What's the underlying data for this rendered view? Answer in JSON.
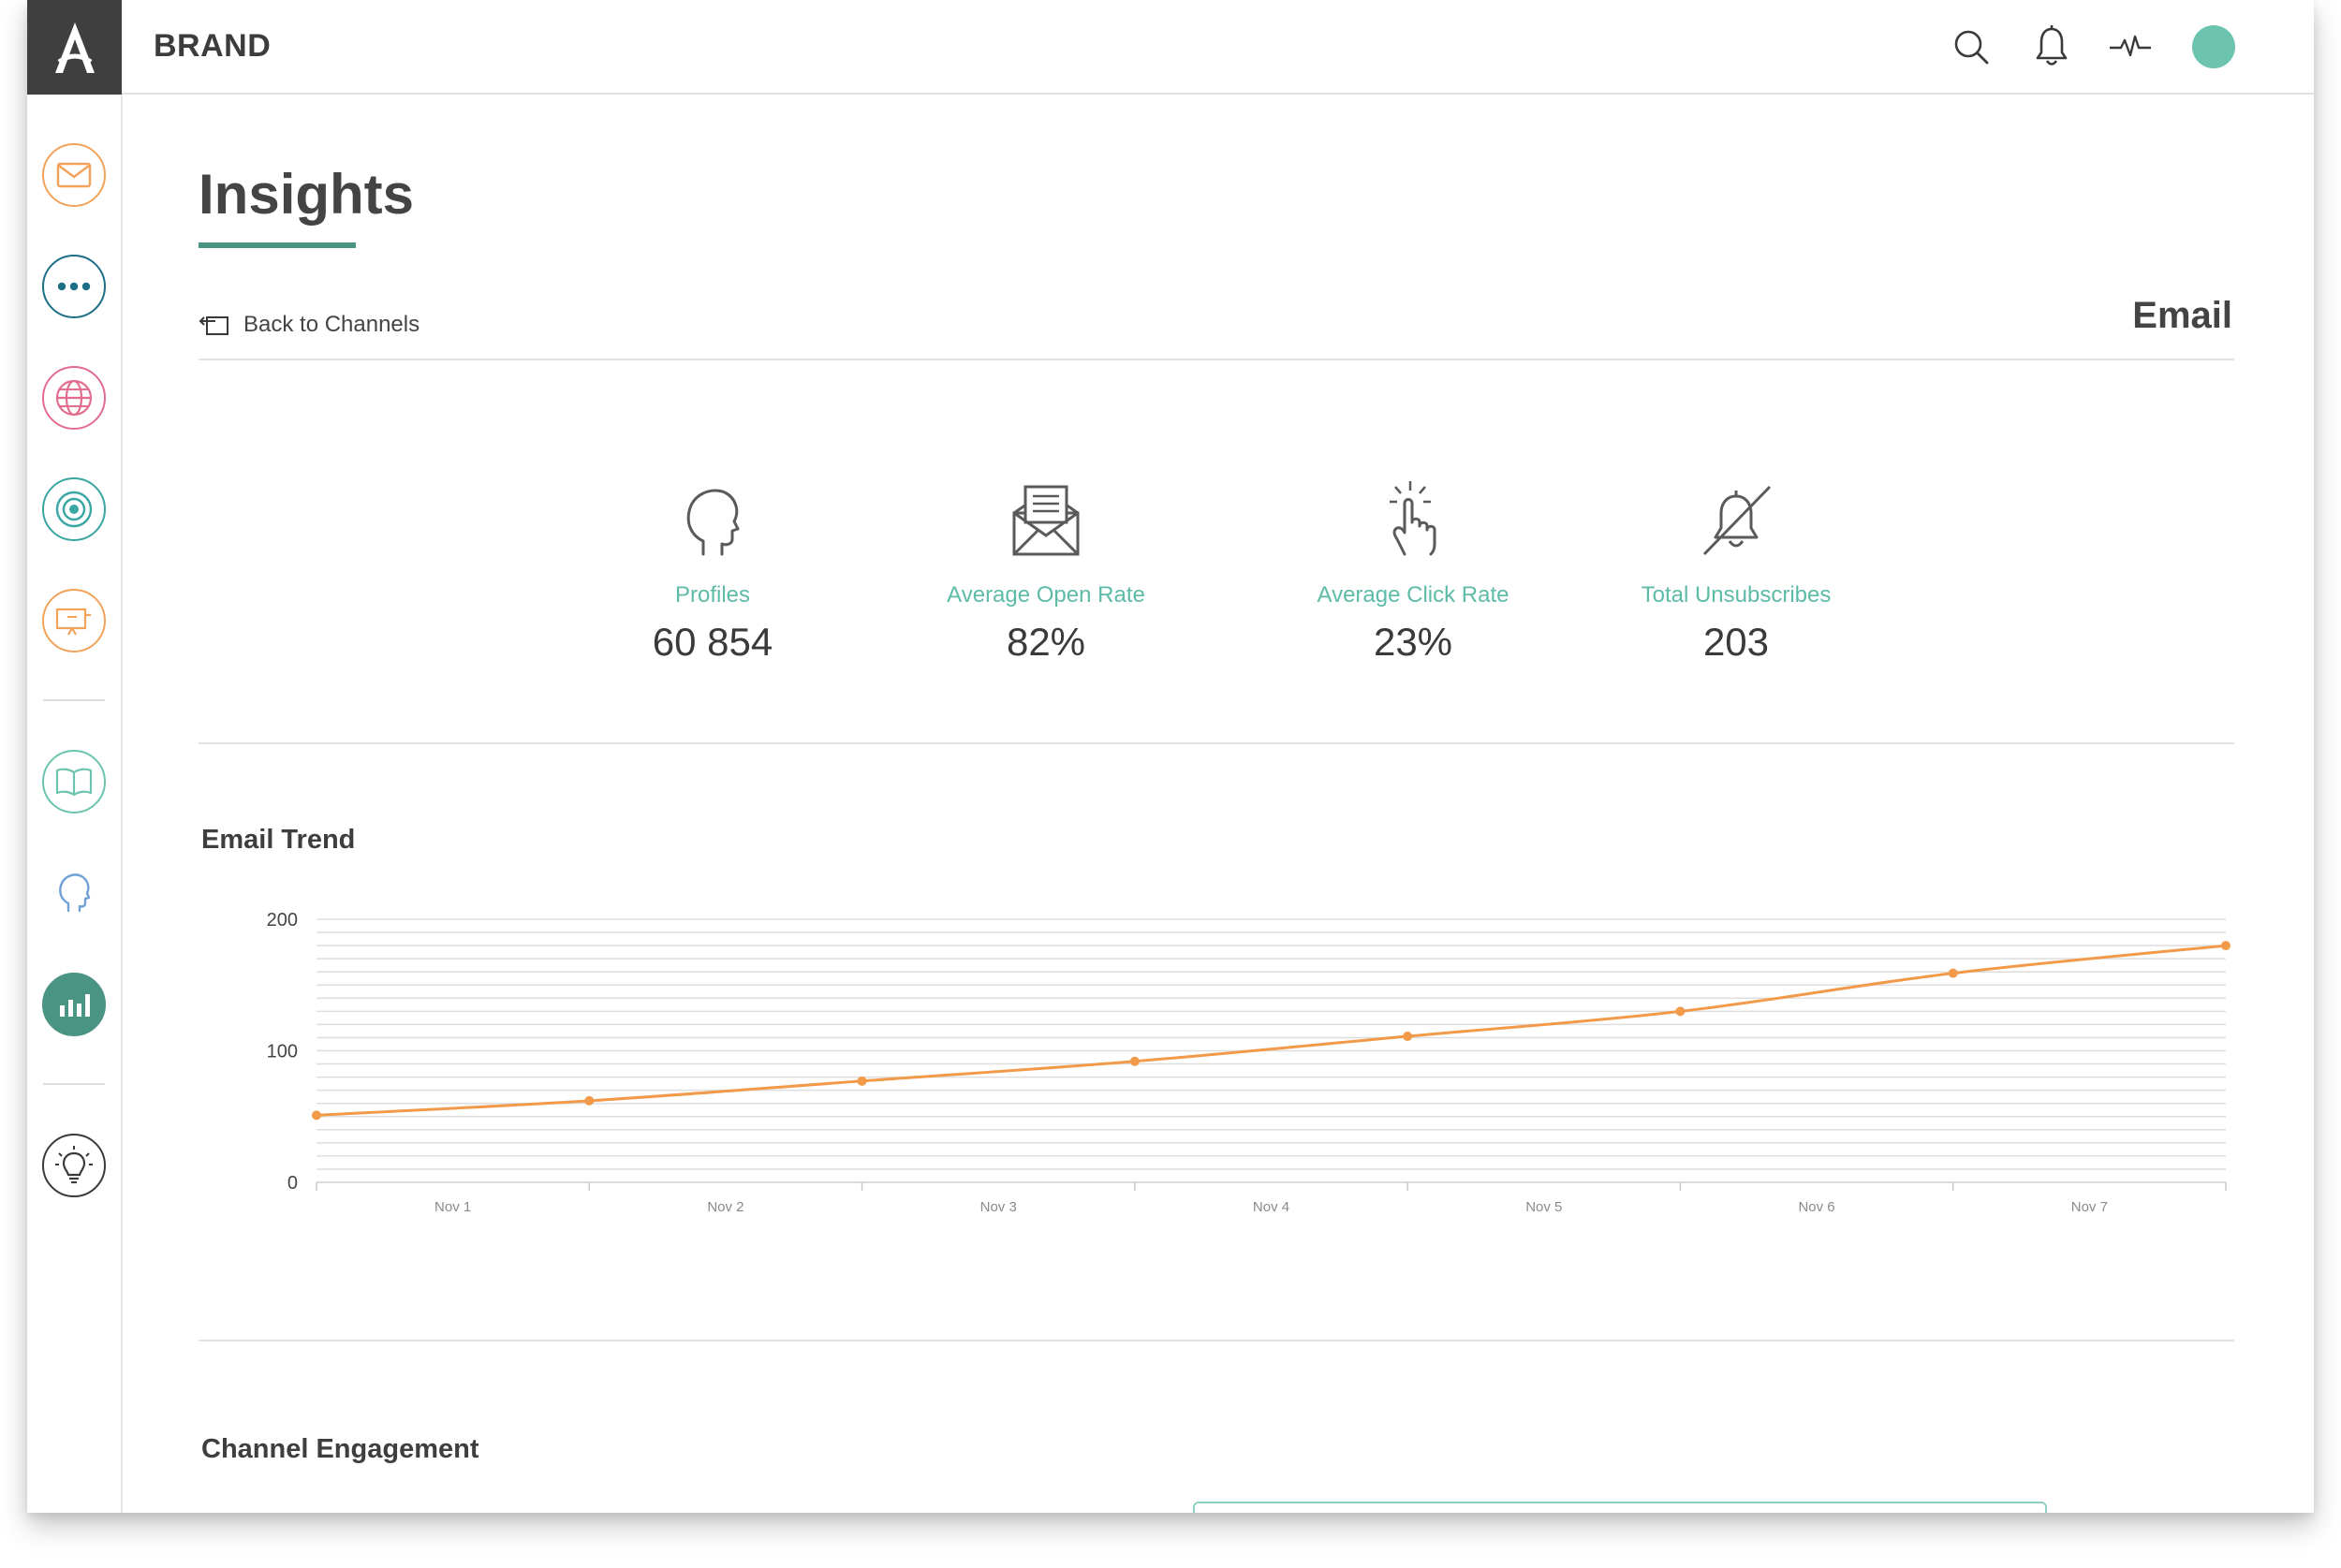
{
  "app": {
    "brand": "BRAND"
  },
  "topbar": {
    "icons": [
      "search-icon",
      "bell-icon",
      "activity-icon"
    ],
    "avatar_color": "#6cc4ae"
  },
  "sidebar": {
    "items": [
      {
        "icon": "mail-icon",
        "color": "#f2a35a"
      },
      {
        "icon": "more-dots-icon",
        "color": "#1c6f86"
      },
      {
        "icon": "globe-icon",
        "color": "#e36d8f"
      },
      {
        "icon": "target-icon",
        "color": "#3aa6a3"
      },
      {
        "icon": "presentation-icon",
        "color": "#f2a35a"
      },
      {
        "icon": "book-icon",
        "color": "#6cc4ae"
      },
      {
        "icon": "head-icon",
        "color": "#6fa0d6"
      },
      {
        "icon": "bar-chart-icon",
        "color": "#4a9484",
        "active": true
      },
      {
        "icon": "lightbulb-icon",
        "color": "#3a3a3a"
      }
    ]
  },
  "page": {
    "title": "Insights",
    "back_label": "Back to Channels",
    "channel": "Email"
  },
  "stats": [
    {
      "icon": "profile-head-icon",
      "label": "Profiles",
      "value": "60 854"
    },
    {
      "icon": "open-envelope-icon",
      "label": "Average Open Rate",
      "value": "82%"
    },
    {
      "icon": "click-hand-icon",
      "label": "Average Click Rate",
      "value": "23%"
    },
    {
      "icon": "bell-off-icon",
      "label": "Total Unsubscribes",
      "value": "203"
    }
  ],
  "sections": {
    "trend_title": "Email Trend",
    "engagement_title": "Channel Engagement"
  },
  "colors": {
    "accent": "#4a9484",
    "teal_text": "#5dbba7",
    "line": "#f29a4a"
  },
  "chart_data": {
    "type": "line",
    "title": "Email Trend",
    "categories": [
      "Nov 1",
      "Nov 2",
      "Nov 3",
      "Nov 4",
      "Nov 5",
      "Nov 6",
      "Nov 7"
    ],
    "x": [
      0,
      1,
      2,
      3,
      4,
      5,
      6,
      7
    ],
    "values": [
      51,
      62,
      77,
      92,
      111,
      130,
      159,
      180
    ],
    "y_ticks": [
      0,
      100,
      200
    ],
    "ylim": [
      0,
      200
    ],
    "grid": true,
    "legend": "none"
  }
}
